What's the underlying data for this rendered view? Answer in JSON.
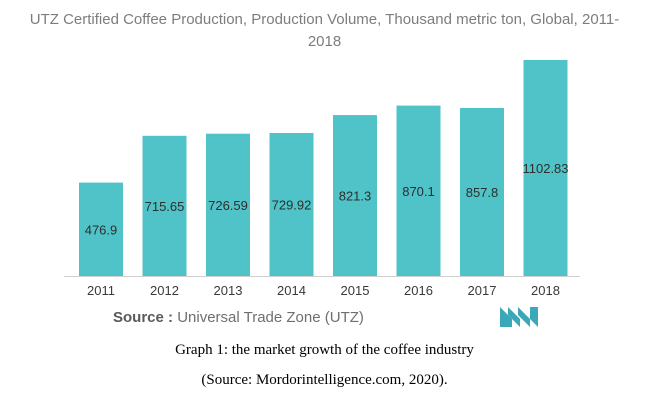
{
  "chart_data": {
    "type": "bar",
    "title": "UTZ Certified Coffee Production, Production Volume, Thousand metric ton, Global, 2011-2018",
    "categories": [
      "2011",
      "2012",
      "2013",
      "2014",
      "2015",
      "2016",
      "2017",
      "2018"
    ],
    "values": [
      476.9,
      715.65,
      726.59,
      729.92,
      821.3,
      870.1,
      857.8,
      1102.83
    ],
    "value_labels": [
      "476.9",
      "715.65",
      "726.59",
      "729.92",
      "821.3",
      "870.1",
      "857.8",
      "1102.83"
    ],
    "xlabel": "",
    "ylabel": "",
    "ylim": [
      0,
      1102.83
    ],
    "grid": false,
    "bar_color": "#4fc3c7"
  },
  "title_line1": "UTZ Certified Coffee Production, Production Volume, Thousand metric ton, Global, 2011-",
  "title_line2": "2018",
  "source_prefix": "Source :",
  "source_text": "Universal Trade Zone (UTZ)",
  "caption_line1": "Graph 1: the market growth of the coffee industry",
  "caption_line2": "(Source: Mordorintelligence.com, 2020).",
  "logo_color": "#3aa8b8"
}
